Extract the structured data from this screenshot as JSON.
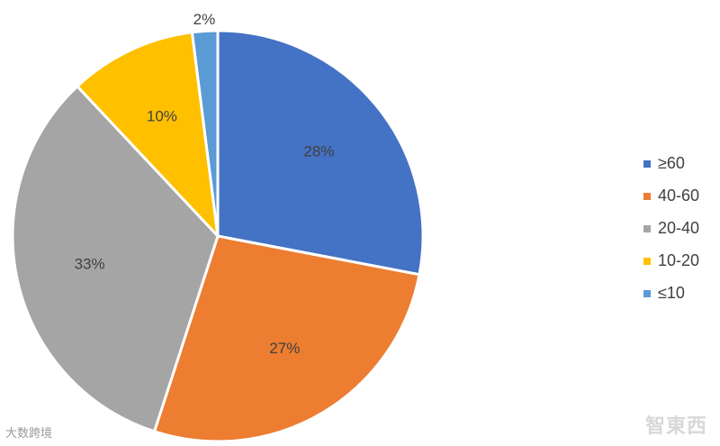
{
  "chart_data": {
    "type": "pie",
    "categories": [
      "≥60",
      "40-60",
      "20-40",
      "10-20",
      "≤10"
    ],
    "values": [
      28,
      27,
      33,
      10,
      2
    ],
    "labels": [
      "28%",
      "27%",
      "33%",
      "10%",
      "2%"
    ],
    "colors": [
      "#4472c4",
      "#ed7d31",
      "#a5a5a5",
      "#ffc000",
      "#5b9bd5"
    ],
    "legend": "right"
  },
  "watermarks": {
    "left": "大数跨境",
    "right": "智東西"
  }
}
